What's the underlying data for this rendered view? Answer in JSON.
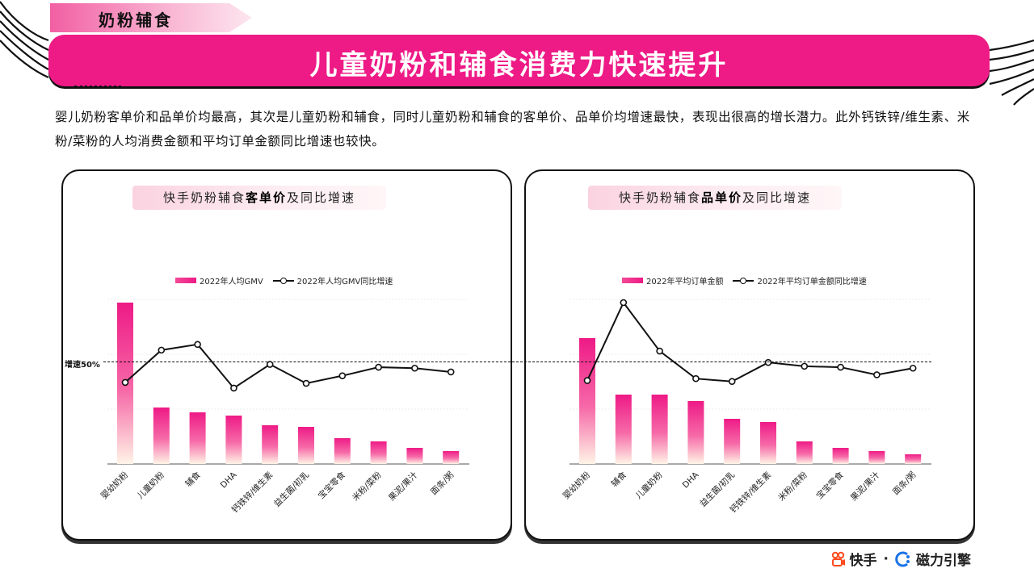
{
  "header": {
    "section_label": "奶粉辅食",
    "title": "儿童奶粉和辅食消费力快速提升"
  },
  "description": "婴儿奶粉客单价和品单价均最高，其次是儿童奶粉和辅食，同时儿童奶粉和辅食的客单价、品单价均增速最快，表现出很高的增长潜力。此外钙铁锌/维生素、米粉/菜粉的人均消费金额和平均订单金额同比增速也较快。",
  "reference_line": {
    "label": "增速50%",
    "value": 0.5
  },
  "colors": {
    "accent": "#ee1a86",
    "bar_top": "#ee1a86",
    "bar_bottom": "#fff4e6",
    "line": "#111111"
  },
  "chart_data": [
    {
      "type": "bar",
      "title_pre": "快手奶粉辅食",
      "title_bold": "客单价",
      "title_post": "及同比增速",
      "legend_bar": "2022年人均GMV",
      "legend_line": "2022年人均GMV同比增速",
      "categories": [
        "婴幼奶粉",
        "儿童奶粉",
        "辅食",
        "DHA",
        "钙铁锌/维生素",
        "益生菌/初乳",
        "宝宝零食",
        "米粉/菜粉",
        "果泥/果汁",
        "面条/粥"
      ],
      "bar_values": [
        100,
        35,
        32,
        30,
        24,
        23,
        16,
        14,
        10,
        8
      ],
      "line_values": [
        0.28,
        0.62,
        0.68,
        0.22,
        0.47,
        0.27,
        0.35,
        0.44,
        0.43,
        0.39
      ],
      "ylim": [
        0,
        1
      ],
      "grid": true
    },
    {
      "type": "bar",
      "title_pre": "快手奶粉辅食",
      "title_bold": "品单价",
      "title_post": "及同比增速",
      "legend_bar": "2022年平均订单金额",
      "legend_line": "2022年平均订单金额同比增速",
      "categories": [
        "婴幼奶粉",
        "辅食",
        "儿童奶粉",
        "DHA",
        "益生菌/初乳",
        "钙铁锌/维生素",
        "米粉/菜粉",
        "宝宝零食",
        "果泥/果汁",
        "面条/粥"
      ],
      "bar_values": [
        78,
        43,
        43,
        39,
        28,
        26,
        14,
        10,
        8,
        6
      ],
      "line_values": [
        0.3,
        1.12,
        0.61,
        0.32,
        0.29,
        0.49,
        0.45,
        0.44,
        0.36,
        0.43
      ],
      "ylim": [
        0,
        1
      ],
      "grid": true
    }
  ],
  "footer": {
    "brand1": "快手",
    "sep": "·",
    "brand2": "磁力引擎"
  }
}
